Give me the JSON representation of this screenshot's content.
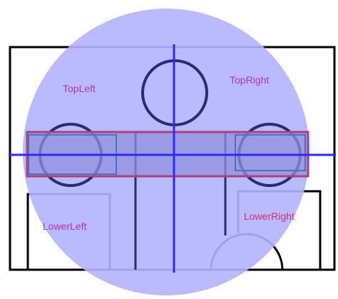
{
  "labels": {
    "top_left": "TopLeft",
    "top_right": "TopRight",
    "lower_left": "LowerLeft",
    "lower_right": "LowerRight"
  },
  "colors": {
    "background": "#ffffff",
    "frame": "#000000",
    "shape_outline": "#2a2a7a",
    "circle_fill": "#b2b2ff",
    "axis_line": "#2b2bff",
    "band_outline": "#b0407a",
    "band_fill": "#8f8fdc",
    "inner_box": "#4d70c0",
    "label_text": "#b033b8",
    "label_text_alt": "#d03070"
  }
}
